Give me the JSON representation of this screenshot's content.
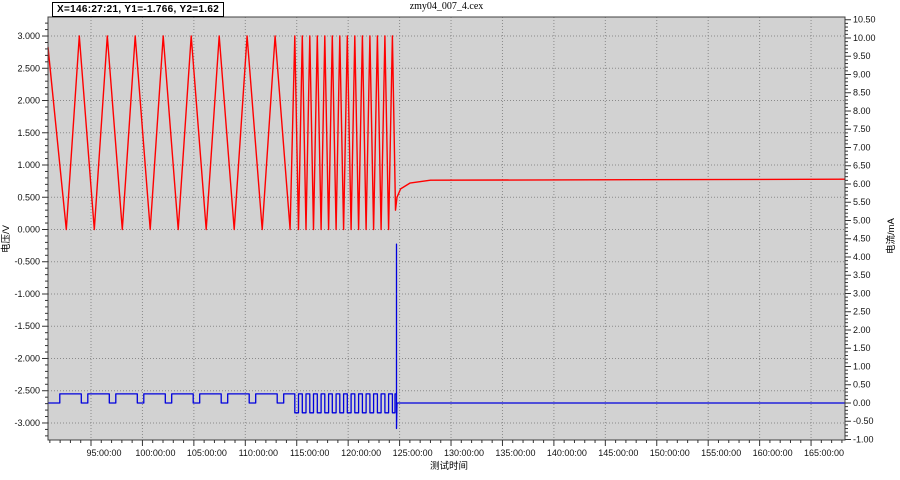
{
  "title": "zmy04_007_4.cex",
  "cursor_readout": "X=146:27:21, Y1=-1.766, Y2=1.62",
  "colors": {
    "voltage_line": "#ff0000",
    "current_line": "#0000dd",
    "plot_background": "#d2d2d2",
    "grid": "#8a8a8a",
    "frame": "#404040"
  },
  "chart_data": {
    "type": "line",
    "title": "zmy04_007_4.cex",
    "grid": true,
    "legend": "none",
    "x_axis": {
      "title": "测试时间",
      "min_hours": 90.82,
      "max_hours": 168.3,
      "minor_step_hours": 1,
      "tick_hours": [
        95,
        100,
        105,
        110,
        115,
        120,
        125,
        130,
        135,
        140,
        145,
        150,
        155,
        160,
        165
      ],
      "tick_labels": [
        "95:00:00",
        "100:00:00",
        "105:00:00",
        "110:00:00",
        "115:00:00",
        "120:00:00",
        "125:00:00",
        "130:00:00",
        "135:00:00",
        "140:00:00",
        "145:00:00",
        "150:00:00",
        "155:00:00",
        "160:00:00",
        "165:00:00"
      ]
    },
    "left_axis": {
      "title": "电压/V",
      "min": -3.264,
      "max": 3.295,
      "minor_step": 0.1,
      "tick_values": [
        3.0,
        2.5,
        2.0,
        1.5,
        1.0,
        0.5,
        0.0,
        -0.5,
        -1.0,
        -1.5,
        -2.0,
        -2.5,
        -3.0
      ],
      "tick_labels": [
        "3.000",
        "2.500",
        "2.000",
        "1.500",
        "1.000",
        "0.500",
        "0.000",
        "-0.500",
        "-1.000",
        "-1.500",
        "-2.000",
        "-2.500",
        "-3.000"
      ]
    },
    "right_axis": {
      "title": "电流/mA",
      "min": -1.014,
      "max": 10.575,
      "minor_step": 0.1,
      "tick_values": [
        10.5,
        10.0,
        9.5,
        9.0,
        8.5,
        8.0,
        7.5,
        7.0,
        6.5,
        6.0,
        5.5,
        5.0,
        4.5,
        4.0,
        3.5,
        3.0,
        2.5,
        2.0,
        1.5,
        1.0,
        0.5,
        0.0,
        -0.5,
        -1.0
      ],
      "tick_labels": [
        "10.50",
        "10.00",
        "9.50",
        "9.00",
        "8.50",
        "8.00",
        "7.50",
        "7.00",
        "6.50",
        "6.00",
        "5.50",
        "5.00",
        "4.50",
        "4.00",
        "3.50",
        "3.00",
        "2.50",
        "2.00",
        "1.50",
        "1.00",
        "0.50",
        "0.00",
        "-0.50",
        "-1.00"
      ]
    },
    "series": [
      {
        "name": "电压",
        "axis": "left",
        "color": "#ff0000",
        "shape": "triangle-cycles-then-constant",
        "phases": {
          "edge_start": {
            "h": 90.82,
            "v": 2.83
          },
          "slow_cycles": {
            "first_valley_h": 92.6,
            "period_h": 2.72,
            "count": 8,
            "rise_h": 1.26,
            "min_v": 0.0,
            "max_v": 3.0
          },
          "fast_cycles": {
            "start_peak_h": 114.81,
            "period_h": 0.73,
            "count": 13,
            "min_v": 0.0,
            "max_v": 3.0
          },
          "settle_points": [
            [
              124.6,
              0.3
            ],
            [
              124.75,
              0.5
            ],
            [
              125.1,
              0.63
            ],
            [
              126.0,
              0.72
            ],
            [
              128.0,
              0.765
            ],
            [
              168.3,
              0.78
            ]
          ]
        }
      },
      {
        "name": "电流",
        "axis": "right",
        "color": "#0000dd",
        "shape": "square-pulses-then-flat",
        "phases": {
          "base_mA": 0.0,
          "slow_pulses": {
            "lead_h": 0.63,
            "high_dur_h": 2.09,
            "high_mA": 0.25,
            "count": 9
          },
          "fast_square": {
            "high_mA": 0.25,
            "low_mA": -0.27
          },
          "pre_spike_high": [
            124.55,
            124.7
          ],
          "spike": {
            "h": 124.7,
            "top_mA": 4.35,
            "bottom_mA": -0.7
          },
          "end_h": 168.3
        }
      }
    ]
  }
}
